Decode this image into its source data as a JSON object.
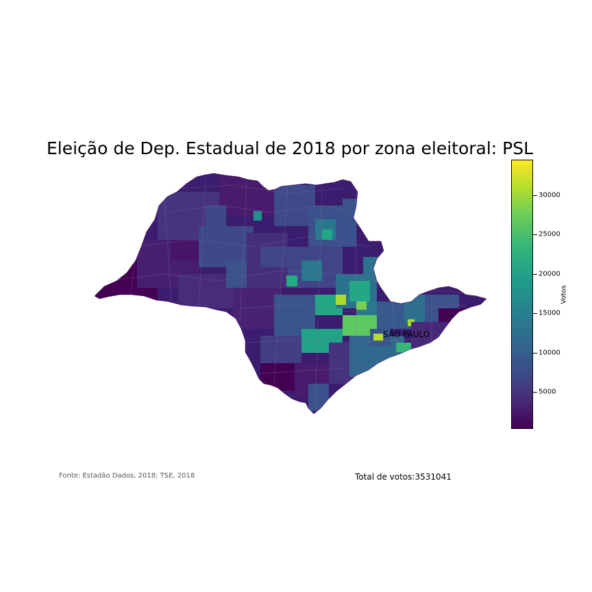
{
  "title": "Eleição de Dep. Estadual de 2018 por zona eleitoral: PSL",
  "map": {
    "city_label": "SÃO PAULO"
  },
  "colorbar": {
    "label": "Votos",
    "colormap": "viridis",
    "range": [
      300,
      34500
    ],
    "ticks": [
      "5000",
      "10000",
      "15000",
      "20000",
      "25000",
      "30000"
    ]
  },
  "footer": {
    "source": "Fonte: Estadão Dados, 2018; TSE, 2018",
    "total": "Total de votos:3531041"
  }
}
